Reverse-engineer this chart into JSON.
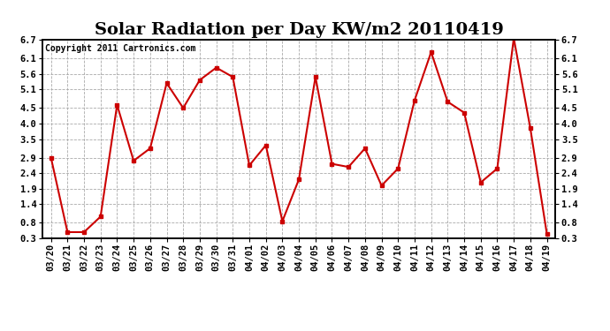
{
  "title": "Solar Radiation per Day KW/m2 20110419",
  "copyright": "Copyright 2011 Cartronics.com",
  "line_color": "#cc0000",
  "marker": "s",
  "marker_size": 3,
  "background_color": "#ffffff",
  "grid_color": "#aaaaaa",
  "labels": [
    "03/20",
    "03/21",
    "03/22",
    "03/23",
    "03/24",
    "03/25",
    "03/26",
    "03/27",
    "03/28",
    "03/29",
    "03/30",
    "03/31",
    "04/01",
    "04/02",
    "04/03",
    "04/04",
    "04/05",
    "04/06",
    "04/07",
    "04/08",
    "04/09",
    "04/10",
    "04/11",
    "04/12",
    "04/13",
    "04/14",
    "04/15",
    "04/16",
    "04/17",
    "04/18",
    "04/19"
  ],
  "values": [
    2.9,
    0.5,
    0.5,
    1.0,
    4.6,
    2.8,
    3.2,
    5.3,
    4.5,
    5.4,
    5.8,
    5.5,
    2.65,
    3.3,
    0.85,
    2.2,
    5.5,
    2.7,
    2.6,
    3.2,
    2.0,
    2.55,
    4.75,
    6.3,
    4.7,
    4.35,
    2.1,
    2.55,
    6.75,
    3.85,
    0.45
  ],
  "ylim": [
    0.3,
    6.7
  ],
  "yticks": [
    0.3,
    0.8,
    1.4,
    1.9,
    2.4,
    2.9,
    3.5,
    4.0,
    4.5,
    5.1,
    5.6,
    6.1,
    6.7
  ],
  "title_fontsize": 14,
  "tick_fontsize": 7.5,
  "copyright_fontsize": 7
}
